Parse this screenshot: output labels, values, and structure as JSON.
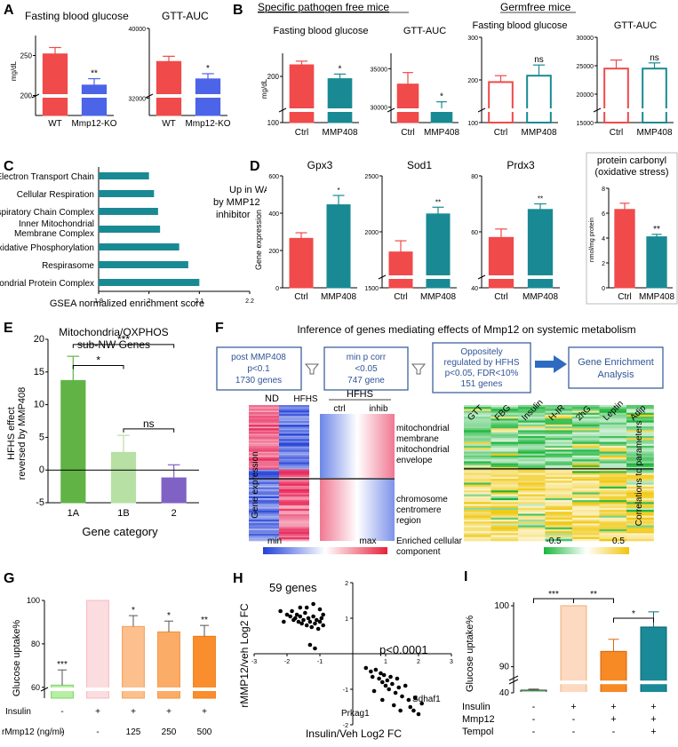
{
  "panels": {
    "A": {
      "letter": "A",
      "title1": "Fasting blood glucose",
      "title2": "GTT-AUC",
      "ylabel": "mg/dL",
      "chart_data": [
        {
          "type": "bar",
          "title": "Fasting blood glucose",
          "ylabel": "mg/dL",
          "categories": [
            "WT",
            "Mmp12-KO"
          ],
          "values": [
            252,
            213
          ],
          "errors": [
            8,
            8
          ],
          "yticks": [
            "200",
            "250"
          ],
          "ylim": [
            175,
            275
          ],
          "significance": [
            "",
            "**"
          ]
        },
        {
          "type": "bar",
          "title": "GTT-AUC",
          "ylabel": "",
          "categories": [
            "WT",
            "Mmp12-KO"
          ],
          "values": [
            36200,
            34200
          ],
          "errors": [
            600,
            600
          ],
          "yticks": [
            "32000",
            "40000"
          ],
          "ylim": [
            30000,
            40000
          ],
          "significance": [
            "",
            "*"
          ]
        }
      ]
    },
    "B": {
      "letter": "B",
      "spf_header": "Specific pathogen free mice",
      "gf_header": "Germfree mice",
      "chart_data": [
        {
          "type": "bar",
          "title": "Fasting blood glucose",
          "ylabel": "mg/dL",
          "categories": [
            "Ctrl",
            "MMP408"
          ],
          "values": [
            225,
            195
          ],
          "errors": [
            8,
            10
          ],
          "yticks": [
            "100",
            "200"
          ],
          "ylim": [
            100,
            250
          ],
          "significance": [
            "",
            "*"
          ]
        },
        {
          "type": "bar",
          "title": "GTT-AUC",
          "ylabel": "",
          "categories": [
            "Ctrl",
            "MMP408"
          ],
          "values": [
            33000,
            29500
          ],
          "errors": [
            1500,
            1200
          ],
          "yticks": [
            "30000",
            "35000"
          ],
          "ylim": [
            28000,
            37000
          ],
          "significance": [
            "",
            "*"
          ]
        },
        {
          "type": "bar",
          "title": "Fasting blood glucose",
          "ylabel": "",
          "categories": [
            "Ctrl",
            "MMP408"
          ],
          "values": [
            195,
            210
          ],
          "errors": [
            15,
            25
          ],
          "yticks": [
            "100",
            "200",
            "300"
          ],
          "ylim": [
            100,
            300
          ],
          "significance": [
            "",
            "ns"
          ]
        },
        {
          "type": "bar",
          "title": "GTT-AUC",
          "ylabel": "",
          "categories": [
            "Ctrl",
            "MMP408"
          ],
          "values": [
            24500,
            24500
          ],
          "errors": [
            1500,
            1000
          ],
          "yticks": [
            "15000",
            "20000",
            "25000",
            "30000"
          ],
          "ylim": [
            15000,
            30000
          ],
          "significance": [
            "",
            "ns"
          ]
        }
      ]
    },
    "C": {
      "letter": "C",
      "xlabel": "GSEA normalized enrichment score",
      "annotation": "Up in WAT by MMP12 inhibitor",
      "chart_data": {
        "type": "bar",
        "orientation": "horizontal",
        "xlabel": "GSEA normalized enrichment score",
        "xlim": [
          1.9,
          2.2
        ],
        "xticks": [
          "1.9",
          "2",
          "2.1",
          "2.2"
        ],
        "categories": [
          "Electron Transport Chain",
          "Cellular Respiration",
          "Respiratory Chain Complex",
          "Inner Mitochondrial Membrane Complex",
          "Oxidative Phosphorylation",
          "Respirasome",
          "Mitochondrial Protein Complex"
        ],
        "values": [
          2.0,
          2.01,
          2.018,
          2.022,
          2.06,
          2.078,
          2.1
        ]
      }
    },
    "D": {
      "letter": "D",
      "ylabel": "Gene expression",
      "chart_data": [
        {
          "type": "bar",
          "title": "Gpx3",
          "categories": [
            "Ctrl",
            "MMP408"
          ],
          "values": [
            265,
            445
          ],
          "errors": [
            30,
            50
          ],
          "yticks": [
            "0",
            "200",
            "400",
            "600"
          ],
          "ylim": [
            0,
            600
          ],
          "significance": [
            "",
            "*"
          ]
        },
        {
          "type": "bar",
          "title": "Sod1",
          "categories": [
            "Ctrl",
            "MMP408"
          ],
          "values": [
            1820,
            2160
          ],
          "errors": [
            100,
            60
          ],
          "yticks": [
            "1500",
            "2000",
            "2500"
          ],
          "ylim": [
            1500,
            2500
          ],
          "significance": [
            "",
            "**"
          ]
        },
        {
          "type": "bar",
          "title": "Prdx3",
          "categories": [
            "Ctrl",
            "MMP408"
          ],
          "values": [
            58,
            68
          ],
          "errors": [
            3,
            2
          ],
          "yticks": [
            "40",
            "60",
            "80"
          ],
          "ylim": [
            40,
            80
          ],
          "significance": [
            "",
            "**"
          ]
        },
        {
          "type": "bar",
          "title": "protein carbonyl (oxidative stress)",
          "ylabel": "nmol/mg protein",
          "categories": [
            "Ctrl",
            "MMP408"
          ],
          "values": [
            6.3,
            4.1
          ],
          "errors": [
            0.5,
            0.2
          ],
          "yticks": [
            "0",
            "2",
            "4",
            "6",
            "8"
          ],
          "ylim": [
            0,
            8
          ],
          "significance": [
            "",
            "**"
          ]
        }
      ]
    },
    "E": {
      "letter": "E",
      "title": "Mitochondria/OXPHOS sub-NW Genes",
      "ylabel": "HFHS effect reversed by MMP408",
      "xlabel": "Gene category",
      "chart_data": {
        "type": "bar",
        "categories": [
          "1A",
          "1B",
          "2"
        ],
        "values": [
          13.7,
          2.7,
          -1.2
        ],
        "errors": [
          3.7,
          2.6,
          2.0
        ],
        "colors": [
          "#61b346",
          "#b7e0a4",
          "#7f62c4"
        ],
        "yticks": [
          "-5",
          "0",
          "5",
          "10",
          "15",
          "20"
        ],
        "ylim": [
          -5,
          20
        ],
        "xlabel": "Gene category",
        "comparisons": [
          {
            "from": "1A",
            "to": "2",
            "label": "***"
          },
          {
            "from": "1A",
            "to": "1B",
            "label": "*"
          },
          {
            "from": "1B",
            "to": "2",
            "label": "ns"
          }
        ]
      }
    },
    "F": {
      "letter": "F",
      "title": "Inference of genes mediating effects of Mmp12 on systemic metabolism",
      "flow": {
        "box1": [
          "post MMP408",
          "p<0.1",
          "1730 genes"
        ],
        "box2": [
          "min p corr",
          "<0.05",
          "747 gene"
        ],
        "box3": [
          "Oppositely",
          "regulated by HFHS",
          "p<0.05, FDR<10%",
          "151 genes"
        ],
        "box4": [
          "Gene Enrichment",
          "Analysis"
        ]
      },
      "heat_cols": [
        "ND",
        "HFHS"
      ],
      "hfhs_header": "HFHS",
      "hfhs_cols": [
        "ctrl",
        "inhib"
      ],
      "enriched_top": [
        "mitochondrial",
        "membrane",
        "mitochondrial",
        "envelope"
      ],
      "enriched_bottom": [
        "chromosome",
        "centromere",
        "region"
      ],
      "enriched_label": [
        "Enriched cellular",
        "component"
      ],
      "ylabel": "Gene expression",
      "min": "min",
      "max": "max",
      "params": [
        "GTT",
        "FBG",
        "Insulin",
        "H-IR",
        "2hG",
        "Leptin",
        "Adip"
      ],
      "corr_label": "Correlations to parameters",
      "scale_low": "-0.5",
      "scale_high": "0.5"
    },
    "G": {
      "letter": "G",
      "ylabel": "Glucose uptake%",
      "row_labels": [
        "Insulin",
        "rMmp12 (ng/ml)"
      ],
      "chart_data": {
        "type": "bar",
        "categories": [
          "-/-",
          "+/-",
          "+/125",
          "+/250",
          "+/500"
        ],
        "values": [
          61,
          100,
          88,
          85.5,
          83.5
        ],
        "errors": [
          7,
          0,
          5,
          5,
          5
        ],
        "yticks": [
          "60",
          "80",
          "100"
        ],
        "ylim": [
          55,
          100
        ],
        "significance": [
          "***",
          "",
          "*",
          "*",
          "**"
        ],
        "insulin": [
          "-",
          "+",
          "+",
          "+",
          "+"
        ],
        "rmmp12": [
          "-",
          "-",
          "125",
          "250",
          "500"
        ]
      }
    },
    "H": {
      "letter": "H",
      "ylabel": "rMMP12/veh Log2 FC",
      "xlabel": "Insulin/Veh Log2 FC",
      "count": "59 genes",
      "pval": "p<0.0001",
      "label1": "Sdhaf1",
      "label2": "Prkag1",
      "chart_data": {
        "type": "scatter",
        "xlim": [
          -3,
          3
        ],
        "ylim": [
          -2,
          2
        ],
        "xticks": [
          "-3",
          "-2",
          "-1",
          "1",
          "2",
          "3"
        ],
        "yticks": [
          "-2",
          "-1",
          "1",
          "2"
        ],
        "points": [
          [
            -2.2,
            1.2
          ],
          [
            -2.0,
            1.1
          ],
          [
            -1.9,
            1.05
          ],
          [
            -1.85,
            1.2
          ],
          [
            -1.8,
            0.95
          ],
          [
            -1.75,
            1.0
          ],
          [
            -1.7,
            1.1
          ],
          [
            -1.65,
            0.9
          ],
          [
            -1.6,
            1.05
          ],
          [
            -1.55,
            0.85
          ],
          [
            -1.5,
            0.95
          ],
          [
            -1.45,
            1.15
          ],
          [
            -1.4,
            0.8
          ],
          [
            -1.35,
            1.0
          ],
          [
            -1.3,
            0.9
          ],
          [
            -1.25,
            0.75
          ],
          [
            -1.2,
            1.05
          ],
          [
            -1.15,
            0.85
          ],
          [
            -1.1,
            0.95
          ],
          [
            -1.05,
            0.7
          ],
          [
            -1.0,
            0.9
          ],
          [
            -0.95,
            1.0
          ],
          [
            -0.9,
            0.8
          ],
          [
            -1.6,
            1.3
          ],
          [
            -1.4,
            1.3
          ],
          [
            -1.2,
            1.4
          ],
          [
            -1.0,
            1.25
          ],
          [
            -0.9,
            1.1
          ],
          [
            -2.1,
            0.9
          ],
          [
            -1.3,
            0.25
          ],
          [
            -1.15,
            0.15
          ],
          [
            0.4,
            -0.4
          ],
          [
            0.55,
            -0.5
          ],
          [
            0.6,
            -0.65
          ],
          [
            0.7,
            -0.45
          ],
          [
            0.8,
            -0.7
          ],
          [
            0.85,
            -0.55
          ],
          [
            0.9,
            -0.8
          ],
          [
            0.95,
            -0.6
          ],
          [
            1.0,
            -0.9
          ],
          [
            1.05,
            -0.75
          ],
          [
            1.1,
            -1.0
          ],
          [
            1.15,
            -0.65
          ],
          [
            1.2,
            -0.85
          ],
          [
            1.3,
            -1.1
          ],
          [
            1.35,
            -0.7
          ],
          [
            1.4,
            -0.95
          ],
          [
            1.5,
            -1.2
          ],
          [
            1.6,
            -0.9
          ],
          [
            1.7,
            -1.3
          ],
          [
            1.75,
            -1.5
          ],
          [
            1.85,
            -1.6
          ],
          [
            1.9,
            -1.25
          ],
          [
            2.0,
            -1.7
          ],
          [
            2.1,
            -1.4
          ],
          [
            0.65,
            -1.05
          ],
          [
            0.9,
            -1.3
          ],
          [
            1.25,
            -1.45
          ],
          [
            1.45,
            -1.6
          ]
        ]
      }
    },
    "I": {
      "letter": "I",
      "ylabel": "Glucose uptake%",
      "row_labels": [
        "Insulin",
        "Mmp12",
        "Tempol"
      ],
      "chart_data": {
        "type": "bar",
        "categories": [
          "-/-/-",
          "+/-/-",
          "+/+/-",
          "+/+/+"
        ],
        "values": [
          45,
          100,
          92.5,
          96.5
        ],
        "errors": [
          2,
          0,
          2,
          2.5
        ],
        "yticks": [
          "40",
          "90",
          "100"
        ],
        "ylim": [
          40,
          100
        ],
        "comparisons": [
          {
            "from": 0,
            "to": 1,
            "label": "***"
          },
          {
            "from": 1,
            "to": 2,
            "label": "**"
          },
          {
            "from": 2,
            "to": 3,
            "label": "*"
          }
        ],
        "insulin": [
          "-",
          "+",
          "+",
          "+"
        ],
        "mmp12": [
          "-",
          "-",
          "+",
          "+"
        ],
        "tempol": [
          "-",
          "-",
          "-",
          "+"
        ]
      }
    }
  },
  "colors": {
    "red": "#f04a4a",
    "blue": "#4b64e8",
    "teal": "#198a93",
    "green": "#61b346",
    "lightgreen": "#b7e0a4",
    "purple": "#7f62c4",
    "flowblue": "#2f5597"
  }
}
